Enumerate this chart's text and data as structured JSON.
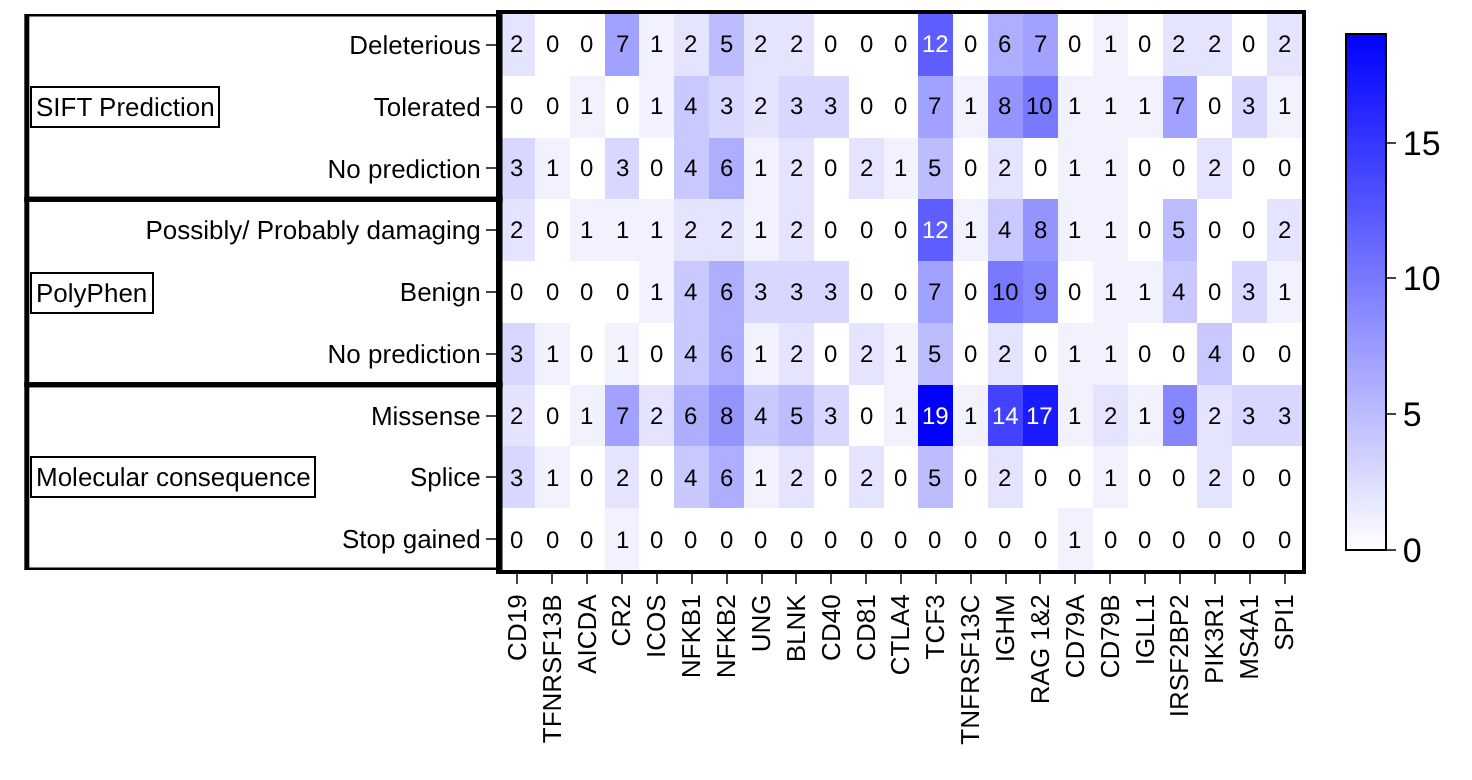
{
  "chart_data": {
    "type": "heatmap",
    "categories": [
      "CD19",
      "TFNRSF13B",
      "AICDA",
      "CR2",
      "ICOS",
      "NFKB1",
      "NFKB2",
      "UNG",
      "BLNK",
      "CD40",
      "CD81",
      "CTLA4",
      "TCF3",
      "TNFRSF13C",
      "IGHM",
      "RAG 1&2",
      "CD79A",
      "CD79B",
      "IGLL1",
      "IRSF2BP2",
      "PIK3R1",
      "MS4A1",
      "SPI1"
    ],
    "y_categories": [
      "Deleterious",
      "Tolerated",
      "No prediction",
      "Possibly/ Probably damaging",
      "Benign",
      "No prediction",
      "Missense",
      "Splice",
      "Stop gained"
    ],
    "cells": [
      [
        2,
        0,
        0,
        7,
        1,
        2,
        5,
        2,
        2,
        0,
        0,
        0,
        12,
        0,
        6,
        7,
        0,
        1,
        0,
        2,
        2,
        0,
        2
      ],
      [
        0,
        0,
        1,
        0,
        1,
        4,
        3,
        2,
        3,
        3,
        0,
        0,
        7,
        1,
        8,
        10,
        1,
        1,
        1,
        7,
        0,
        3,
        1
      ],
      [
        3,
        1,
        0,
        3,
        0,
        4,
        6,
        1,
        2,
        0,
        2,
        1,
        5,
        0,
        2,
        0,
        1,
        1,
        0,
        0,
        2,
        0,
        0
      ],
      [
        2,
        0,
        1,
        1,
        1,
        2,
        2,
        1,
        2,
        0,
        0,
        0,
        12,
        1,
        4,
        8,
        1,
        1,
        0,
        5,
        0,
        0,
        2
      ],
      [
        0,
        0,
        0,
        0,
        1,
        4,
        6,
        3,
        3,
        3,
        0,
        0,
        7,
        0,
        10,
        9,
        0,
        1,
        1,
        4,
        0,
        3,
        1
      ],
      [
        3,
        1,
        0,
        1,
        0,
        4,
        6,
        1,
        2,
        0,
        2,
        1,
        5,
        0,
        2,
        0,
        1,
        1,
        0,
        0,
        4,
        0,
        0
      ],
      [
        2,
        0,
        1,
        7,
        2,
        6,
        8,
        4,
        5,
        3,
        0,
        1,
        19,
        1,
        14,
        17,
        1,
        2,
        1,
        9,
        2,
        3,
        3
      ],
      [
        3,
        1,
        0,
        2,
        0,
        4,
        6,
        1,
        2,
        0,
        2,
        0,
        5,
        0,
        2,
        0,
        0,
        1,
        0,
        0,
        2,
        0,
        0
      ],
      [
        0,
        0,
        0,
        1,
        0,
        0,
        0,
        0,
        0,
        0,
        0,
        0,
        0,
        0,
        0,
        0,
        1,
        0,
        0,
        0,
        0,
        0,
        0
      ]
    ],
    "clim": [
      0,
      19
    ],
    "cticks": [
      0,
      5,
      10,
      15
    ],
    "data_labels": true,
    "annotations": [
      "SIFT Prediction",
      "PolyPhen",
      "Molecular consequence"
    ]
  }
}
